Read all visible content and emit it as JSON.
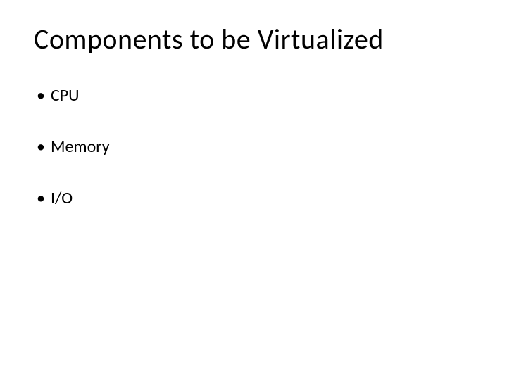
{
  "slide": {
    "title": "Components to be Virtualized",
    "title_fontsize": 40,
    "title_color": "#000000",
    "background_color": "#ffffff",
    "bullets": [
      {
        "label": "CPU"
      },
      {
        "label": "Memory"
      },
      {
        "label": "I/O"
      }
    ],
    "bullet_fontsize": 24,
    "bullet_color": "#000000",
    "bullet_symbol": "•"
  }
}
